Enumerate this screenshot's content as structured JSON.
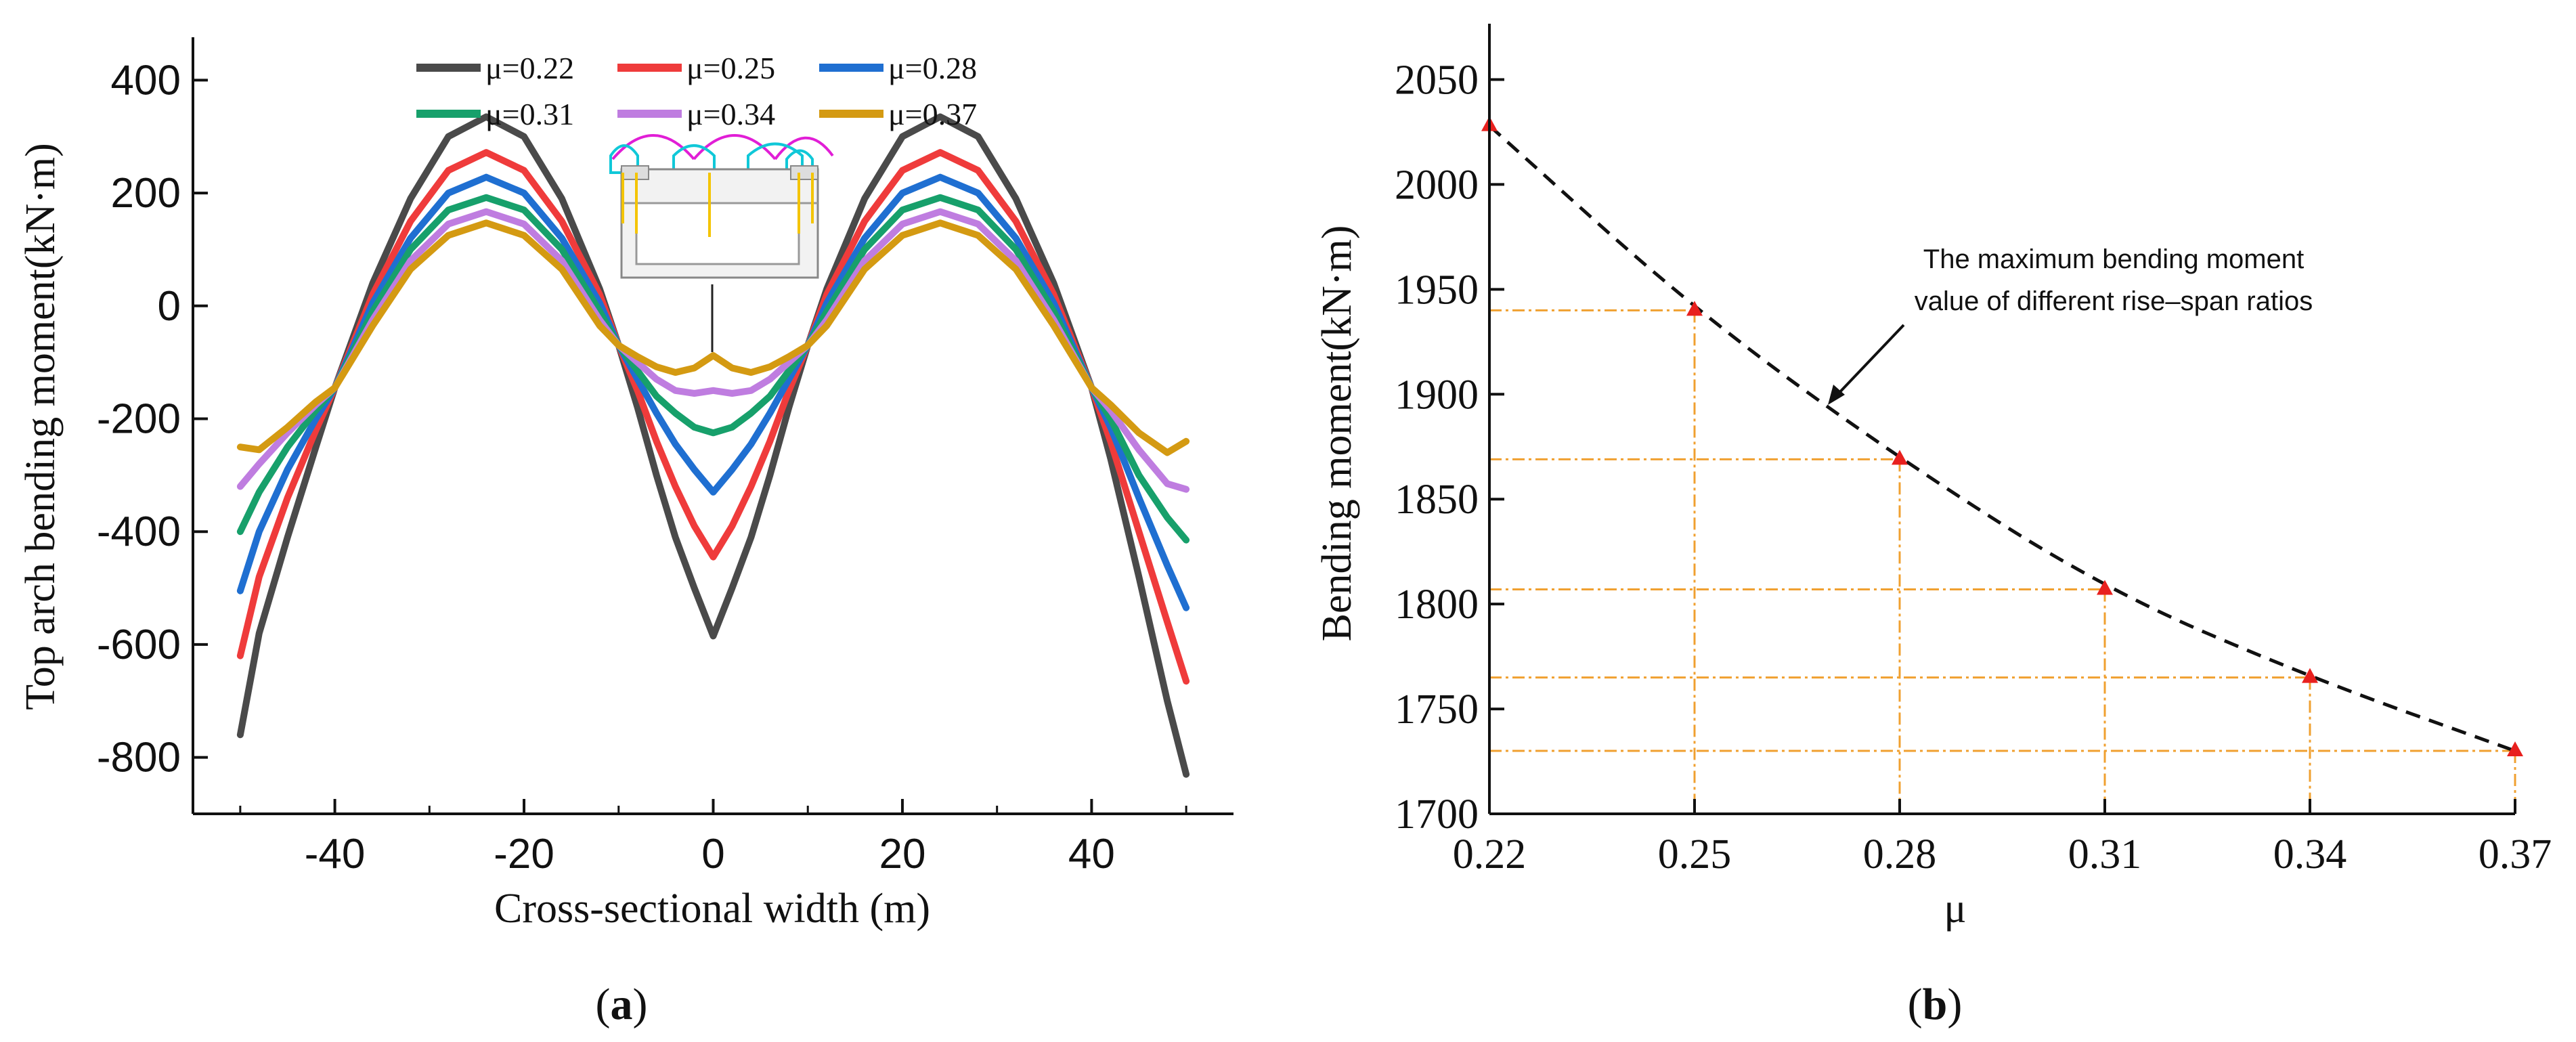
{
  "chart_data": [
    {
      "type": "line",
      "panel_label": "(a)",
      "panel_letter": "a",
      "title": "",
      "xlabel": "Cross-sectional width (m)",
      "ylabel": "Top arch bending moment(kN·m)",
      "xlim": [
        -55,
        55
      ],
      "ylim": [
        -900,
        500
      ],
      "xticks": [
        -40,
        -20,
        0,
        20,
        40
      ],
      "yticks": [
        -800,
        -600,
        -400,
        -200,
        0,
        200,
        400
      ],
      "legend_position": "top",
      "x": [
        -50,
        -48,
        -45,
        -42,
        -40,
        -36,
        -32,
        -28,
        -24,
        -20,
        -16,
        -12,
        -10,
        -8,
        -6,
        -4,
        -2,
        0,
        2,
        4,
        6,
        8,
        10,
        12,
        16,
        20,
        24,
        28,
        32,
        36,
        40,
        42,
        45,
        48,
        50
      ],
      "series": [
        {
          "name": "μ=0.22",
          "color": "#4a4a4a",
          "values": [
            -760,
            -580,
            -410,
            -250,
            -145,
            40,
            190,
            300,
            335,
            300,
            190,
            30,
            -70,
            -180,
            -300,
            -410,
            -500,
            -585,
            -500,
            -410,
            -300,
            -180,
            -70,
            30,
            190,
            300,
            335,
            300,
            190,
            40,
            -145,
            -270,
            -480,
            -700,
            -830
          ]
        },
        {
          "name": "μ=0.25",
          "color": "#ef3b3b",
          "values": [
            -620,
            -480,
            -340,
            -220,
            -145,
            20,
            150,
            240,
            272,
            240,
            150,
            20,
            -70,
            -150,
            -240,
            -320,
            -390,
            -445,
            -390,
            -320,
            -240,
            -150,
            -70,
            20,
            150,
            240,
            272,
            240,
            150,
            20,
            -145,
            -240,
            -400,
            -560,
            -665
          ]
        },
        {
          "name": "μ=0.28",
          "color": "#1f6fd1",
          "values": [
            -505,
            -400,
            -290,
            -200,
            -145,
            5,
            120,
            200,
            228,
            200,
            120,
            5,
            -70,
            -130,
            -190,
            -245,
            -290,
            -330,
            -290,
            -245,
            -190,
            -130,
            -70,
            5,
            120,
            200,
            228,
            200,
            120,
            5,
            -145,
            -215,
            -340,
            -460,
            -535
          ]
        },
        {
          "name": "μ=0.31",
          "color": "#17a06b",
          "values": [
            -400,
            -330,
            -250,
            -185,
            -145,
            -10,
            100,
            170,
            192,
            170,
            100,
            -10,
            -70,
            -115,
            -160,
            -190,
            -215,
            -225,
            -215,
            -190,
            -160,
            -115,
            -70,
            -10,
            100,
            170,
            192,
            170,
            100,
            -10,
            -145,
            -200,
            -300,
            -375,
            -415
          ]
        },
        {
          "name": "μ=0.34",
          "color": "#bf7de0",
          "values": [
            -320,
            -280,
            -225,
            -175,
            -145,
            -25,
            80,
            145,
            167,
            145,
            80,
            -25,
            -70,
            -100,
            -130,
            -150,
            -155,
            -150,
            -155,
            -150,
            -130,
            -100,
            -70,
            -25,
            80,
            145,
            167,
            145,
            80,
            -25,
            -145,
            -185,
            -255,
            -315,
            -325
          ]
        },
        {
          "name": "μ=0.37",
          "color": "#d49a12",
          "values": [
            -250,
            -255,
            -215,
            -170,
            -145,
            -35,
            65,
            125,
            147,
            125,
            65,
            -35,
            -70,
            -90,
            -108,
            -118,
            -110,
            -88,
            -110,
            -118,
            -108,
            -90,
            -70,
            -35,
            65,
            125,
            147,
            125,
            65,
            -35,
            -145,
            -175,
            -225,
            -260,
            -240
          ]
        }
      ]
    },
    {
      "type": "line",
      "panel_label": "(b)",
      "panel_letter": "b",
      "title": "",
      "xlabel": "μ",
      "ylabel": "Bending moment(kN·m)",
      "xlim": [
        0.22,
        0.37
      ],
      "ylim": [
        1700,
        2075
      ],
      "xticks": [
        "0.22",
        "0.25",
        "0.28",
        "0.31",
        "0.34",
        "0.37"
      ],
      "yticks": [
        1700,
        1750,
        1800,
        1850,
        1900,
        1950,
        2000,
        2050
      ],
      "x": [
        0.22,
        0.25,
        0.28,
        0.31,
        0.34,
        0.37
      ],
      "values": [
        2028,
        1940,
        1869,
        1807,
        1765,
        1730
      ],
      "annotation_line1": "The maximum bending moment",
      "annotation_line2": "value of different rise–span ratios",
      "line_color": "#111111",
      "marker_color": "#e8201e",
      "guide_color": "#f0a030"
    }
  ]
}
